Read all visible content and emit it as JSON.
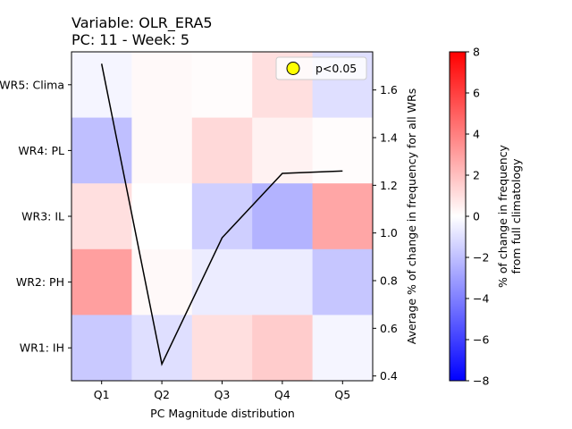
{
  "chart_data": {
    "type": "heatmap",
    "title_lines": [
      "Variable: OLR_ERA5",
      "PC: 11 - Week: 5"
    ],
    "xlabel": "PC Magnitude distribution",
    "x_categories": [
      "Q1",
      "Q2",
      "Q3",
      "Q4",
      "Q5"
    ],
    "y_categories": [
      "WR5: Clima",
      "WR4: PL",
      "WR3: IL",
      "WR2: PH",
      "WR1: IH"
    ],
    "heatmap_values": [
      [
        -0.3,
        0.2,
        0.1,
        1.0,
        -1.0
      ],
      [
        -2.0,
        0.2,
        1.2,
        0.4,
        0.1
      ],
      [
        1.0,
        0.0,
        -1.5,
        -2.4,
        2.8
      ],
      [
        3.0,
        0.2,
        -0.6,
        -0.6,
        -1.8
      ],
      [
        -1.7,
        -1.0,
        1.0,
        1.6,
        -0.3
      ]
    ],
    "color_scale": {
      "min": -8,
      "max": 8,
      "negative": "#0000ff",
      "zero": "#ffffff",
      "positive": "#ff0000"
    },
    "colorbar": {
      "label_lines": [
        "% of change in frequency",
        "from full climatology"
      ],
      "ticks": [
        "8",
        "6",
        "4",
        "2",
        "0",
        "−2",
        "−4",
        "−6",
        "−8"
      ],
      "tick_values": [
        8,
        6,
        4,
        2,
        0,
        -2,
        -4,
        -6,
        -8
      ]
    },
    "line_series": {
      "name": "Average % of change in frequency for all WRs",
      "x": [
        "Q1",
        "Q2",
        "Q3",
        "Q4",
        "Q5"
      ],
      "values": [
        1.71,
        0.45,
        0.98,
        1.25,
        1.26
      ],
      "color": "#000000"
    },
    "right_axis": {
      "label": "Average % of change in frequency for all WRs",
      "ylim": [
        0.38,
        1.76
      ],
      "ticks": [
        "1.6",
        "1.4",
        "1.2",
        "1.0",
        "0.8",
        "0.6",
        "0.4"
      ],
      "tick_values": [
        1.6,
        1.4,
        1.2,
        1.0,
        0.8,
        0.6,
        0.4
      ]
    },
    "legend": {
      "label": "p<0.05",
      "marker_color": "#ffff00",
      "placement": "upper right"
    }
  }
}
